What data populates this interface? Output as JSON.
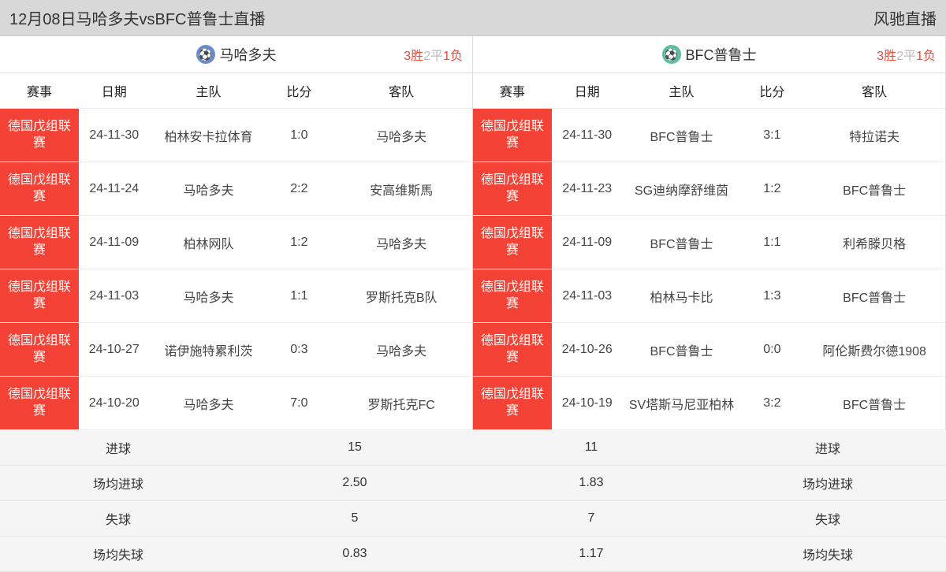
{
  "header": {
    "title": "12月08日马哈多夫vsBFC普鲁士直播",
    "brand": "风驰直播"
  },
  "teams": {
    "left": {
      "name": "马哈多夫",
      "icon_bg": "#6b8cc4",
      "record": {
        "win": "3胜",
        "draw": "2平",
        "loss": "1负"
      }
    },
    "right": {
      "name": "BFC普鲁士",
      "icon_bg": "#5bc0a0",
      "record": {
        "win": "3胜",
        "draw": "2平",
        "loss": "1负"
      }
    }
  },
  "columns": {
    "competition": "赛事",
    "date": "日期",
    "home": "主队",
    "score": "比分",
    "away": "客队"
  },
  "left_matches": [
    {
      "comp": "德国戊组联赛",
      "date": "24-11-30",
      "home": "柏林安卡拉体育",
      "score": "1:0",
      "away": "马哈多夫"
    },
    {
      "comp": "德国戊组联赛",
      "date": "24-11-24",
      "home": "马哈多夫",
      "score": "2:2",
      "away": "安高维斯馬"
    },
    {
      "comp": "德国戊组联赛",
      "date": "24-11-09",
      "home": "柏林网队",
      "score": "1:2",
      "away": "马哈多夫"
    },
    {
      "comp": "德国戊组联赛",
      "date": "24-11-03",
      "home": "马哈多夫",
      "score": "1:1",
      "away": "罗斯托克B队"
    },
    {
      "comp": "德国戊组联赛",
      "date": "24-10-27",
      "home": "诺伊施特累利茨",
      "score": "0:3",
      "away": "马哈多夫"
    },
    {
      "comp": "德国戊组联赛",
      "date": "24-10-20",
      "home": "马哈多夫",
      "score": "7:0",
      "away": "罗斯托克FC"
    }
  ],
  "right_matches": [
    {
      "comp": "德国戊组联赛",
      "date": "24-11-30",
      "home": "BFC普鲁士",
      "score": "3:1",
      "away": "特拉诺夫"
    },
    {
      "comp": "德国戊组联赛",
      "date": "24-11-23",
      "home": "SG迪纳摩舒维茵",
      "score": "1:2",
      "away": "BFC普鲁士"
    },
    {
      "comp": "德国戊组联赛",
      "date": "24-11-09",
      "home": "BFC普鲁士",
      "score": "1:1",
      "away": "利希滕贝格"
    },
    {
      "comp": "德国戊组联赛",
      "date": "24-11-03",
      "home": "柏林马卡比",
      "score": "1:3",
      "away": "BFC普鲁士"
    },
    {
      "comp": "德国戊组联赛",
      "date": "24-10-26",
      "home": "BFC普鲁士",
      "score": "0:0",
      "away": "阿伦斯费尔德1908"
    },
    {
      "comp": "德国戊组联赛",
      "date": "24-10-19",
      "home": "SV塔斯马尼亚柏林",
      "score": "3:2",
      "away": "BFC普鲁士"
    }
  ],
  "stats": {
    "labels": {
      "goals": "进球",
      "avg_goals": "场均进球",
      "conceded": "失球",
      "avg_conceded": "场均失球"
    },
    "left": {
      "goals": "15",
      "avg_goals": "2.50",
      "conceded": "5",
      "avg_conceded": "0.83"
    },
    "right": {
      "goals": "11",
      "avg_goals": "1.83",
      "conceded": "7",
      "avg_conceded": "1.17"
    }
  }
}
